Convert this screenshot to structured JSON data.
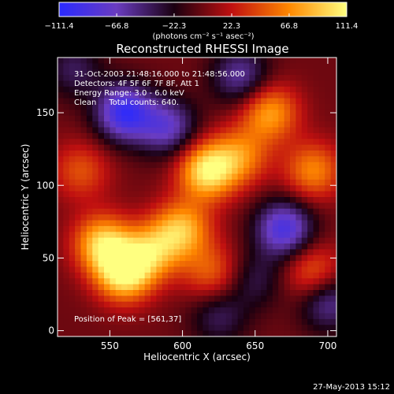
{
  "chart_data": {
    "type": "heatmap",
    "title": "Reconstructed RHESSI Image",
    "xlabel": "Heliocentric X (arcsec)",
    "ylabel": "Heliocentric Y (arcsec)",
    "xlim": [
      514,
      706
    ],
    "ylim": [
      -4,
      188
    ],
    "x_ticks": [
      {
        "value": 550,
        "label": "550"
      },
      {
        "value": 600,
        "label": "600"
      },
      {
        "value": 650,
        "label": "650"
      },
      {
        "value": 700,
        "label": "700"
      }
    ],
    "y_ticks": [
      {
        "value": 0,
        "label": "0"
      },
      {
        "value": 50,
        "label": "50"
      },
      {
        "value": 100,
        "label": "100"
      },
      {
        "value": 150,
        "label": "150"
      }
    ],
    "colorbar": {
      "range": [
        -111.4,
        111.4
      ],
      "ticks": [
        {
          "value": -111.4,
          "label": "−111.4"
        },
        {
          "value": -66.8,
          "label": "−66.8"
        },
        {
          "value": -22.3,
          "label": "−22.3"
        },
        {
          "value": 22.3,
          "label": "22.3"
        },
        {
          "value": 66.8,
          "label": "66.8"
        },
        {
          "value": 111.4,
          "label": "111.4"
        }
      ],
      "unit_label": "(photons cm⁻² s⁻¹ asec⁻²)",
      "colormap": [
        "#2a2aff",
        "#6a3cc0",
        "#1a0010",
        "#c01010",
        "#ff8800",
        "#ffff80"
      ]
    },
    "annotations": [
      "31-Oct-2003 21:48:16.000 to 21:48:56.000",
      "Detectors: 4F 5F 6F 7F 8F, Att 1",
      "Energy Range: 3.0 - 6.0 keV",
      "Clean     Total counts: 640."
    ],
    "peak_label": "Position of Peak = [561,37]",
    "peak": [
      561,
      37
    ],
    "blobs": [
      {
        "x": 560,
        "y": 40,
        "value": 111.4
      },
      {
        "x": 545,
        "y": 60,
        "value": 90
      },
      {
        "x": 580,
        "y": 55,
        "value": 70
      },
      {
        "x": 600,
        "y": 70,
        "value": 80
      },
      {
        "x": 617,
        "y": 110,
        "value": 105
      },
      {
        "x": 640,
        "y": 120,
        "value": 60
      },
      {
        "x": 660,
        "y": 150,
        "value": 75
      },
      {
        "x": 690,
        "y": 110,
        "value": 65
      },
      {
        "x": 620,
        "y": 40,
        "value": 50
      },
      {
        "x": 530,
        "y": 110,
        "value": 45
      },
      {
        "x": 690,
        "y": 40,
        "value": 55
      },
      {
        "x": 560,
        "y": 150,
        "value": -100
      },
      {
        "x": 590,
        "y": 140,
        "value": -70
      },
      {
        "x": 670,
        "y": 70,
        "value": -90
      },
      {
        "x": 700,
        "y": 20,
        "value": -60
      },
      {
        "x": 640,
        "y": 175,
        "value": -60
      },
      {
        "x": 625,
        "y": 10,
        "value": -40
      },
      {
        "x": 525,
        "y": 180,
        "value": -40
      },
      {
        "x": 650,
        "y": 35,
        "value": -35
      }
    ]
  },
  "footer": {
    "date": "27-May-2013 15:12"
  }
}
